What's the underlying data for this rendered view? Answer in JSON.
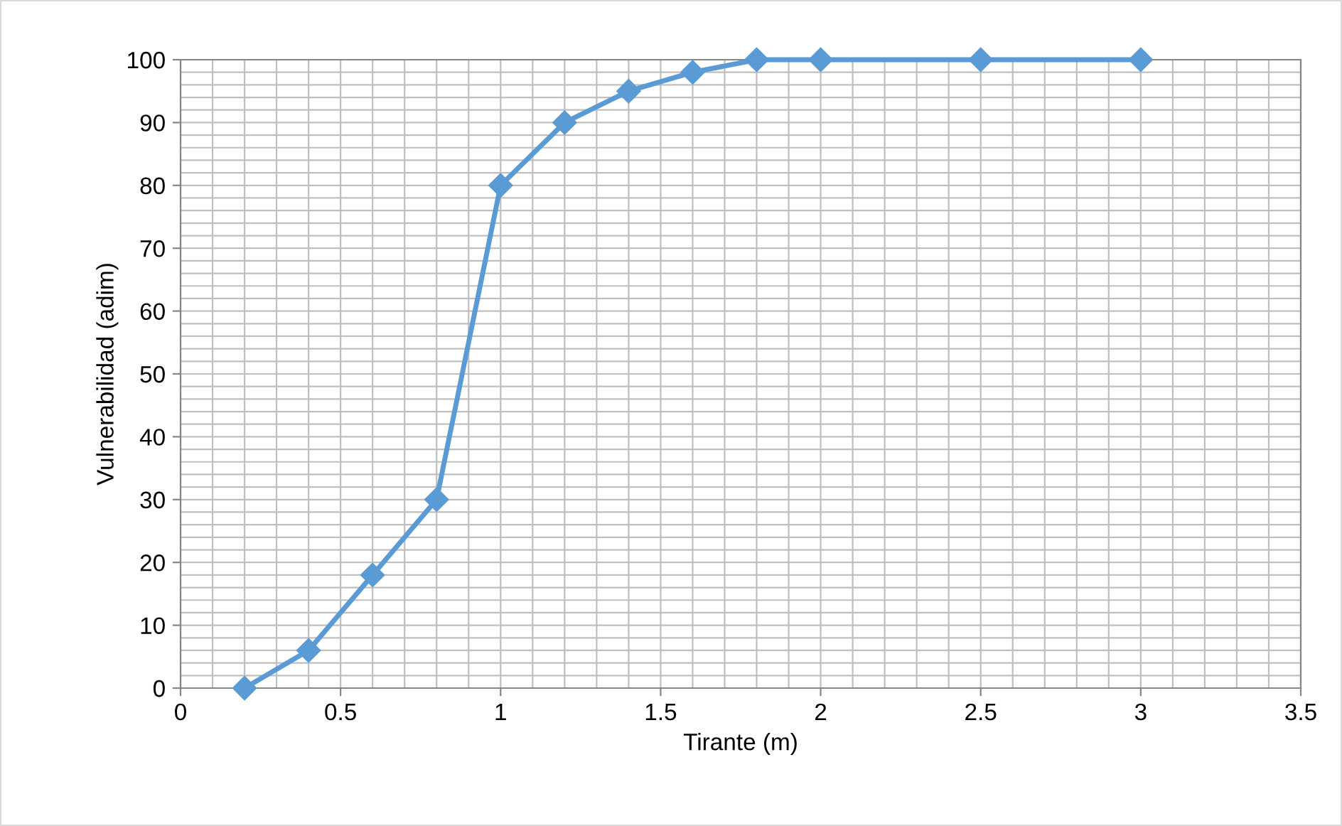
{
  "chart_data": {
    "type": "line",
    "xlabel": "Tirante (m)",
    "ylabel": "Vulnerabilidad (adim)",
    "x": [
      0.2,
      0.4,
      0.6,
      0.8,
      1,
      1.2,
      1.4,
      1.6,
      1.8,
      2,
      2.5,
      3
    ],
    "series": [
      {
        "color": "#5b9bd5",
        "values": [
          0,
          6,
          18,
          30,
          80,
          90,
          95,
          98,
          100,
          100,
          100,
          100
        ]
      }
    ],
    "xlim": [
      0,
      3.5
    ],
    "xticks": [
      0,
      0.5,
      1,
      1.5,
      2,
      2.5,
      3,
      3.5
    ],
    "ylim": [
      0,
      100
    ],
    "yticks": [
      0,
      10,
      20,
      30,
      40,
      50,
      60,
      70,
      80,
      90,
      100
    ],
    "grid": true,
    "marker": "diamond",
    "line_style": "solid"
  }
}
